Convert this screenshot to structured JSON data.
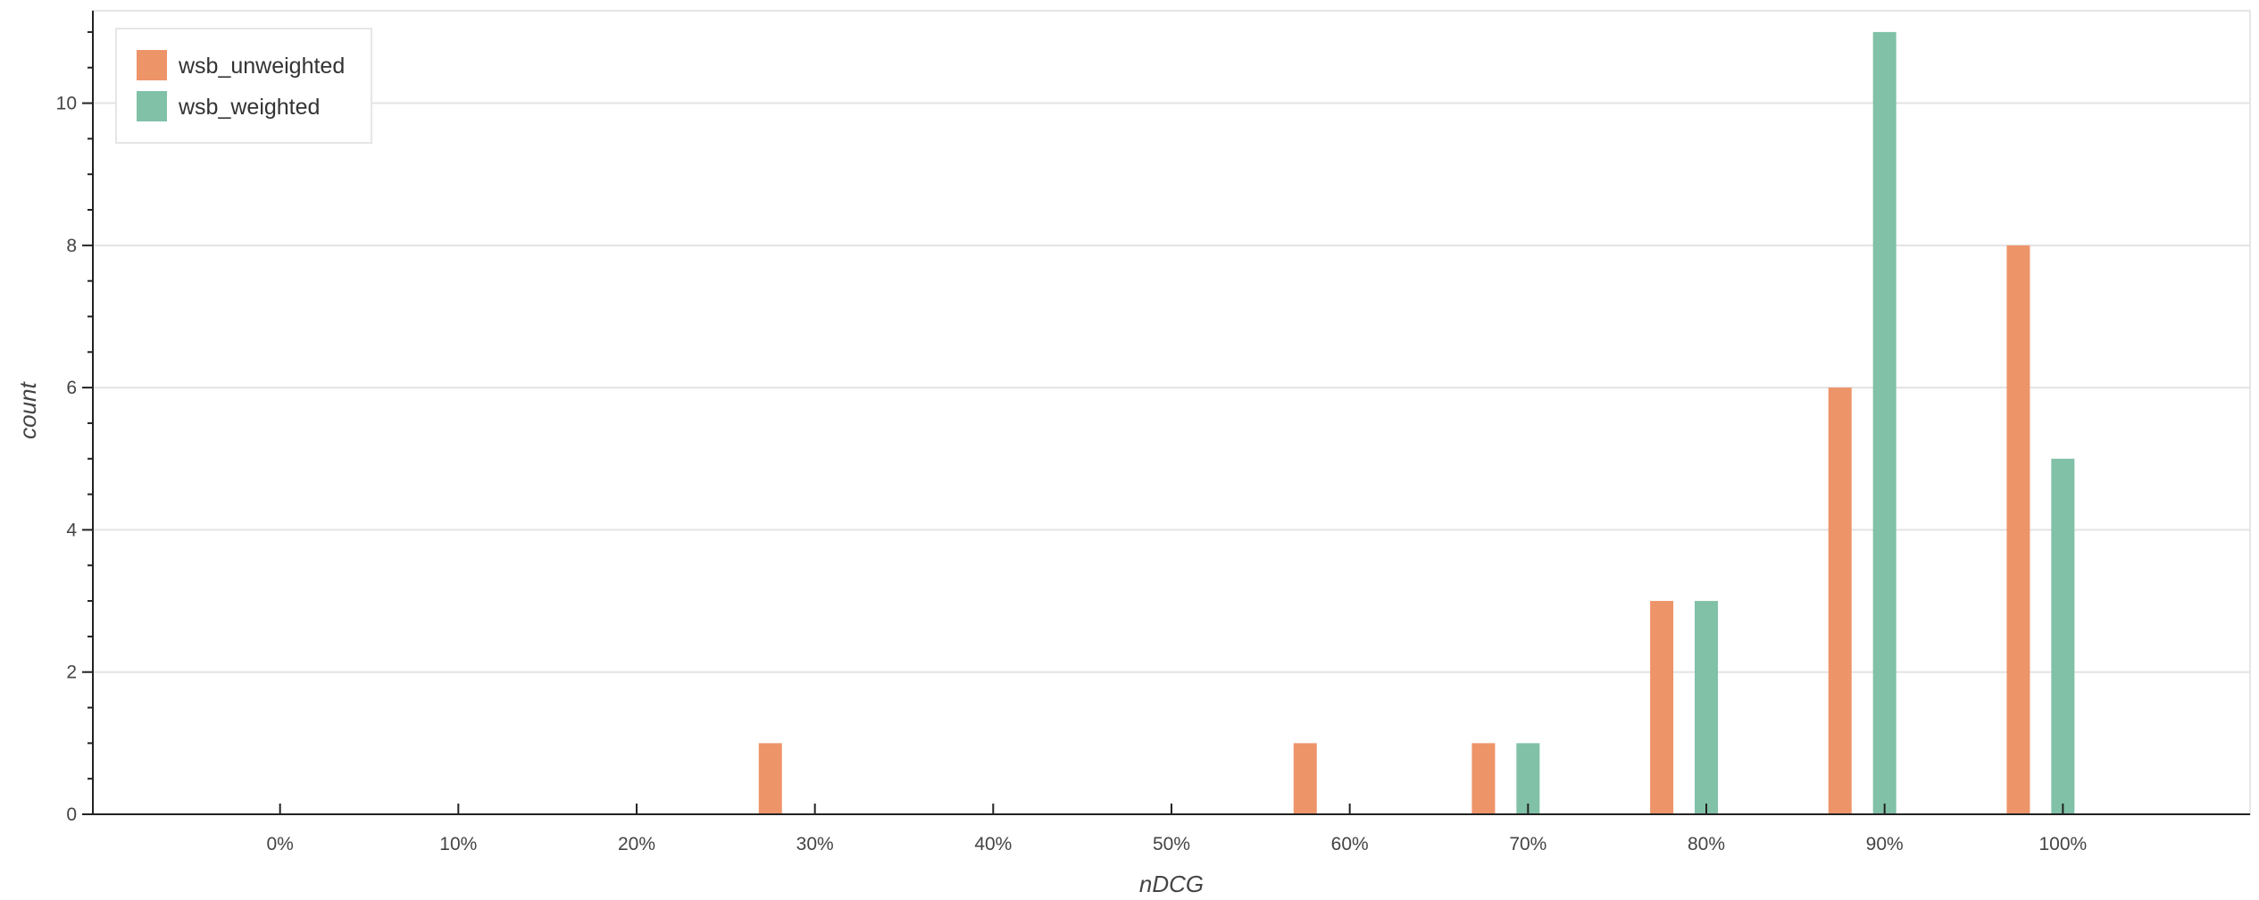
{
  "chart_data": {
    "type": "bar",
    "xlabel": "nDCG",
    "ylabel": "count",
    "x_ticks": [
      "0%",
      "10%",
      "20%",
      "30%",
      "40%",
      "50%",
      "60%",
      "70%",
      "80%",
      "90%",
      "100%"
    ],
    "x_tick_values": [
      0,
      0.1,
      0.2,
      0.3,
      0.4,
      0.5,
      0.6,
      0.7,
      0.8,
      0.9,
      1.0
    ],
    "xlim": [
      -0.105,
      1.105
    ],
    "y_ticks": [
      "0",
      "2",
      "4",
      "6",
      "8",
      "10"
    ],
    "y_tick_values": [
      0,
      2,
      4,
      6,
      8,
      10
    ],
    "ylim": [
      0,
      11.3
    ],
    "grid": "horizontal",
    "legend": "top-left",
    "series": [
      {
        "name": "wsb_unweighted",
        "color": "#ee9469",
        "points": [
          {
            "x": 0.275,
            "y": 1
          },
          {
            "x": 0.575,
            "y": 1
          },
          {
            "x": 0.675,
            "y": 1
          },
          {
            "x": 0.775,
            "y": 3
          },
          {
            "x": 0.875,
            "y": 6
          },
          {
            "x": 0.975,
            "y": 8
          }
        ]
      },
      {
        "name": "wsb_weighted",
        "color": "#80c1a8",
        "points": [
          {
            "x": 0.7,
            "y": 1
          },
          {
            "x": 0.8,
            "y": 3
          },
          {
            "x": 0.9,
            "y": 11
          },
          {
            "x": 1.0,
            "y": 5
          }
        ]
      }
    ]
  }
}
